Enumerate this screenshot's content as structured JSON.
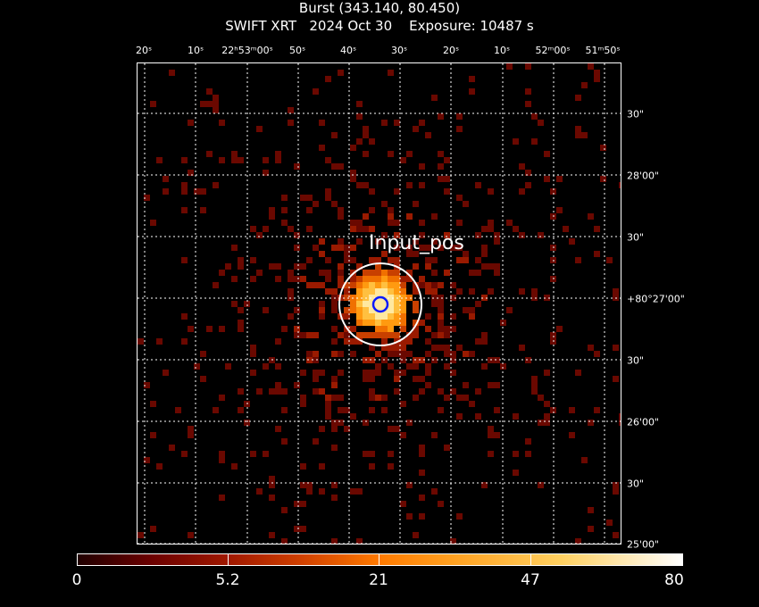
{
  "title": {
    "line1": "Burst (343.140, 80.450)",
    "line2": "SWIFT XRT   2024 Oct 30    Exposure: 10487 s"
  },
  "ra_labels": [
    "20ˢ",
    "10ˢ",
    "22ʰ53ᵐ00ˢ",
    "50ˢ",
    "40ˢ",
    "30ˢ",
    "20ˢ",
    "10ˢ",
    "52ᵐ00ˢ",
    "51ᵐ50ˢ"
  ],
  "dec_labels": [
    "30\"",
    "28'00\"",
    "30\"",
    "+80°27'00\"",
    "30\"",
    "26'00\"",
    "30\"",
    "25'00\""
  ],
  "source_label": "Input_pos",
  "colorbar": {
    "labels": [
      "0",
      "5.2",
      "21",
      "47",
      "80"
    ]
  },
  "colors": {
    "background": "#000000",
    "grid": "#ffffff",
    "circle_outer": "#ffffff",
    "circle_inner": "#0a1aff"
  }
}
